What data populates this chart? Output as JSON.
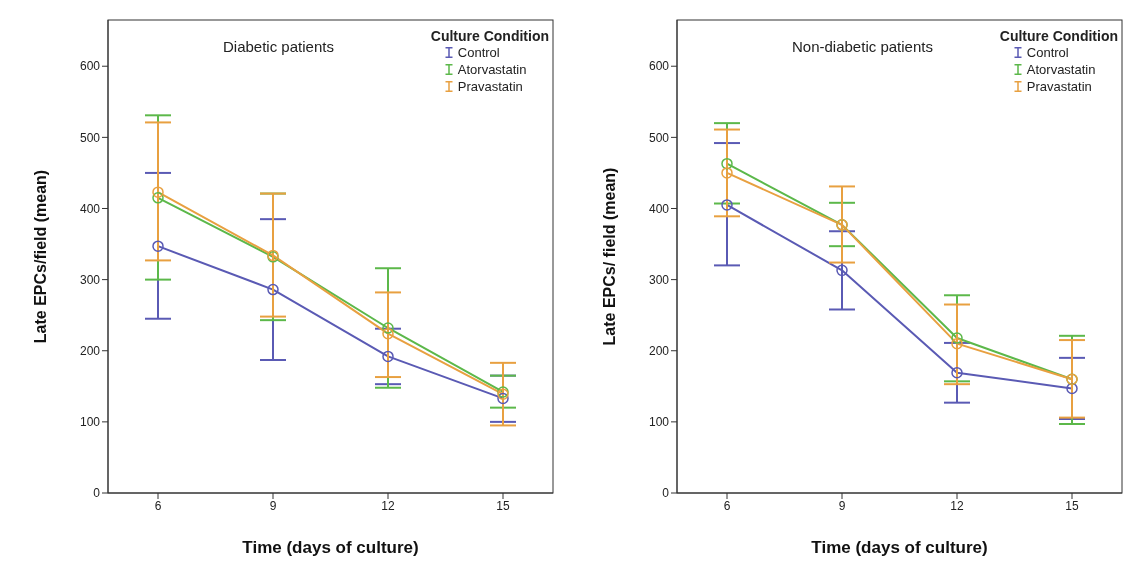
{
  "chart_data": [
    {
      "type": "line",
      "title": "Diabetic patients",
      "xlabel": "Time (days of culture)",
      "ylabel": "Late EPCs/field (mean)",
      "legend_title": "Culture Condition",
      "categories": [
        "6",
        "9",
        "12",
        "15"
      ],
      "ylim": [
        0,
        665
      ],
      "yticks": [
        0,
        100,
        200,
        300,
        400,
        500,
        600
      ],
      "grid": false,
      "legend": "top right",
      "marker": "circle",
      "line_style": "solid",
      "series": [
        {
          "name": "Control",
          "color": "#5a5ab4",
          "values": [
            347,
            286,
            192,
            133
          ],
          "errors": [
            [
              245,
              450
            ],
            [
              187,
              385
            ],
            [
              153,
              231
            ],
            [
              100,
              165
            ]
          ]
        },
        {
          "name": "Atorvastatin",
          "color": "#5cb84a",
          "values": [
            415,
            332,
            232,
            142
          ],
          "errors": [
            [
              300,
              531
            ],
            [
              243,
              421
            ],
            [
              148,
              316
            ],
            [
              120,
              165
            ]
          ]
        },
        {
          "name": "Pravastatin",
          "color": "#e8a040",
          "values": [
            423,
            334,
            224,
            139
          ],
          "errors": [
            [
              327,
              521
            ],
            [
              248,
              421
            ],
            [
              163,
              282
            ],
            [
              95,
              183
            ]
          ]
        }
      ]
    },
    {
      "type": "line",
      "title": "Non-diabetic patients",
      "xlabel": "Time (days of culture)",
      "ylabel": "Late EPCs/ field (mean)",
      "legend_title": "Culture Condition",
      "categories": [
        "6",
        "9",
        "12",
        "15"
      ],
      "ylim": [
        0,
        665
      ],
      "yticks": [
        0,
        100,
        200,
        300,
        400,
        500,
        600
      ],
      "grid": false,
      "legend": "top right",
      "marker": "circle",
      "line_style": "solid",
      "series": [
        {
          "name": "Control",
          "color": "#5a5ab4",
          "values": [
            405,
            313,
            169,
            147
          ],
          "errors": [
            [
              320,
              492
            ],
            [
              258,
              368
            ],
            [
              127,
              211
            ],
            [
              104,
              190
            ]
          ]
        },
        {
          "name": "Atorvastatin",
          "color": "#5cb84a",
          "values": [
            463,
            377,
            218,
            160
          ],
          "errors": [
            [
              407,
              520
            ],
            [
              347,
              408
            ],
            [
              157,
              278
            ],
            [
              97,
              221
            ]
          ]
        },
        {
          "name": "Pravastatin",
          "color": "#e8a040",
          "values": [
            450,
            377,
            210,
            160
          ],
          "errors": [
            [
              389,
              511
            ],
            [
              324,
              431
            ],
            [
              153,
              265
            ],
            [
              106,
              215
            ]
          ]
        }
      ]
    }
  ]
}
